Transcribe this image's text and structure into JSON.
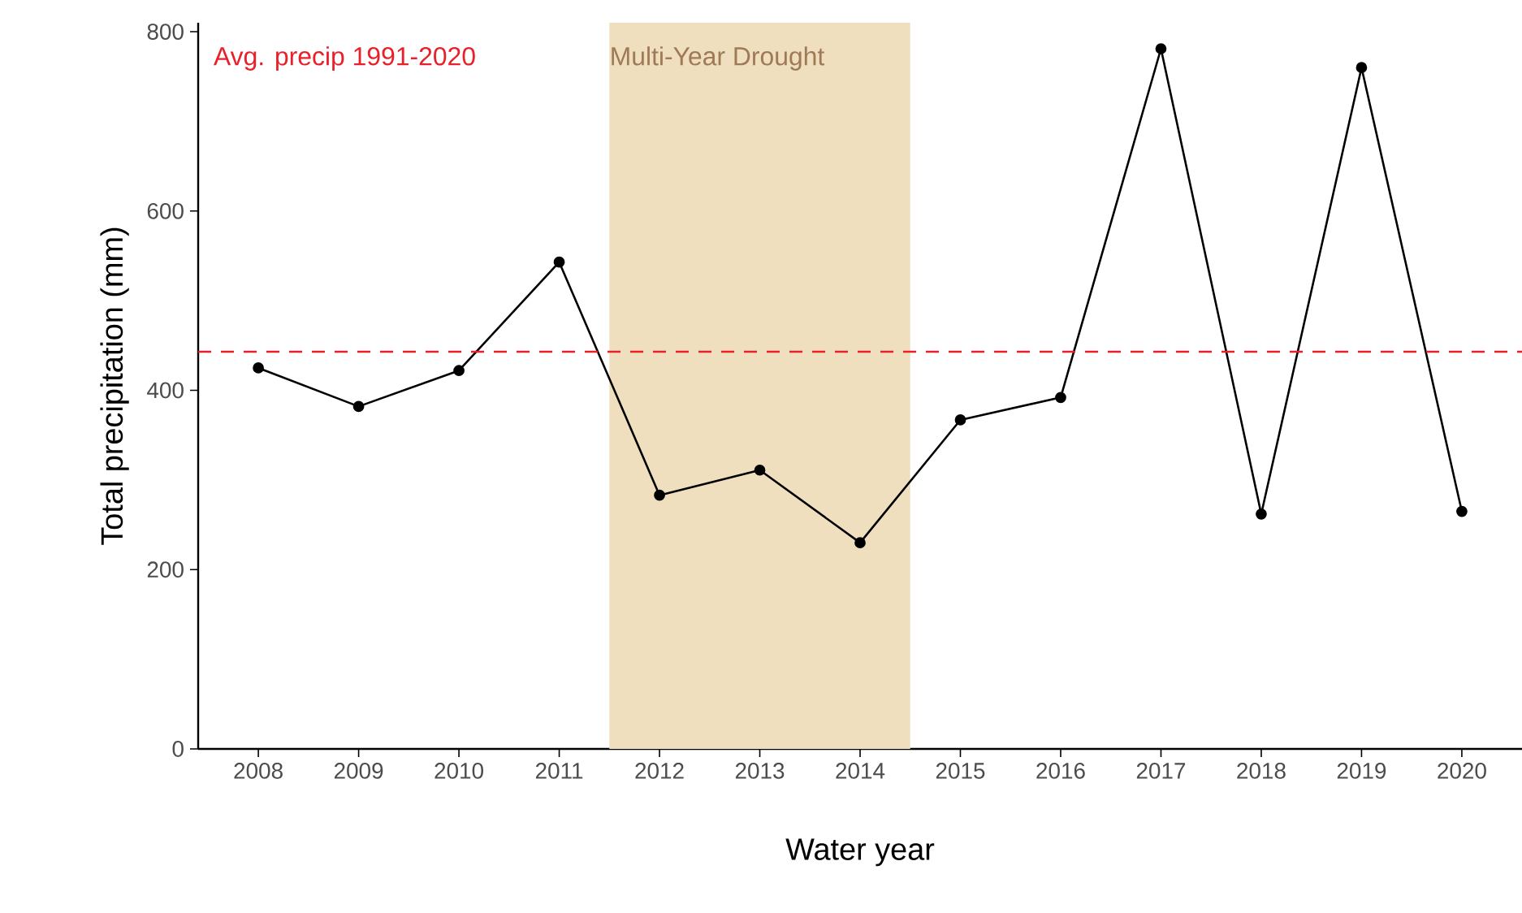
{
  "chart_data": {
    "type": "line",
    "xlabel": "Water year",
    "ylabel": "Total precipitation (mm)",
    "categories": [
      "2008",
      "2009",
      "2010",
      "2011",
      "2012",
      "2013",
      "2014",
      "2015",
      "2016",
      "2017",
      "2018",
      "2019",
      "2020"
    ],
    "series": [
      {
        "color": "#000000",
        "values": [
          425,
          382,
          422,
          543,
          283,
          311,
          230,
          367,
          392,
          781,
          262,
          760,
          265
        ]
      }
    ],
    "ylim": [
      0,
      810
    ],
    "yticks": [
      0,
      200,
      400,
      600,
      800
    ],
    "ref_lines": [
      {
        "axis": "y",
        "value": 443,
        "label": "Avg. precip 1991-2020",
        "color": "#e8202a",
        "line_style": "dashed"
      }
    ],
    "bands": [
      {
        "axis": "x",
        "from": "2012",
        "to": "2014",
        "label": "Multi-Year Drought",
        "color": "#f0dfbf"
      }
    ],
    "marker": "circle",
    "line_style": "solid",
    "grid": false
  }
}
